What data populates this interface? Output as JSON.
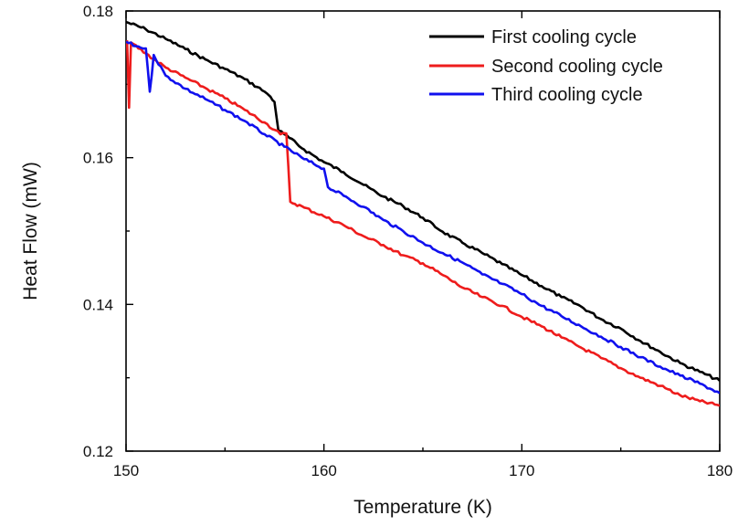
{
  "chart_data": {
    "type": "line",
    "title": "",
    "xlabel": "Temperature (K)",
    "ylabel": "Heat Flow (mW)",
    "xlim": [
      150,
      180
    ],
    "ylim": [
      0.12,
      0.18
    ],
    "x_ticks": [
      150,
      160,
      170,
      180
    ],
    "x_tick_labels": [
      "150",
      "160",
      "170",
      "180"
    ],
    "y_ticks": [
      0.12,
      0.14,
      0.16,
      0.18
    ],
    "y_tick_labels": [
      "0.12",
      "0.14",
      "0.16",
      "0.18"
    ],
    "grid": false,
    "legend_position": "top-right",
    "series": [
      {
        "name": "First cooling cycle",
        "color": "#000000",
        "points": [
          [
            150.0,
            0.1785
          ],
          [
            151.0,
            0.1775
          ],
          [
            152.0,
            0.1762
          ],
          [
            153.0,
            0.1748
          ],
          [
            154.0,
            0.1734
          ],
          [
            155.0,
            0.1721
          ],
          [
            156.0,
            0.1707
          ],
          [
            157.0,
            0.169
          ],
          [
            157.3,
            0.1683
          ],
          [
            157.5,
            0.1676
          ],
          [
            157.7,
            0.1637
          ],
          [
            158.0,
            0.1632
          ],
          [
            159.0,
            0.1611
          ],
          [
            160.0,
            0.1594
          ],
          [
            161.0,
            0.158
          ],
          [
            162.0,
            0.1563
          ],
          [
            163.0,
            0.1547
          ],
          [
            164.0,
            0.1534
          ],
          [
            165.0,
            0.1518
          ],
          [
            166.0,
            0.1499
          ],
          [
            167.0,
            0.1484
          ],
          [
            168.0,
            0.147
          ],
          [
            169.0,
            0.1455
          ],
          [
            170.0,
            0.144
          ],
          [
            171.0,
            0.1425
          ],
          [
            172.0,
            0.141
          ],
          [
            173.0,
            0.1397
          ],
          [
            174.0,
            0.138
          ],
          [
            175.0,
            0.1367
          ],
          [
            176.0,
            0.135
          ],
          [
            177.0,
            0.1335
          ],
          [
            178.0,
            0.132
          ],
          [
            179.0,
            0.1308
          ],
          [
            180.0,
            0.1296
          ]
        ]
      },
      {
        "name": "Second cooling cycle",
        "color": "#ee1c1c",
        "points": [
          [
            150.05,
            0.176
          ],
          [
            150.15,
            0.1668
          ],
          [
            150.25,
            0.1757
          ],
          [
            151.0,
            0.1742
          ],
          [
            152.0,
            0.1723
          ],
          [
            153.0,
            0.1709
          ],
          [
            154.0,
            0.1695
          ],
          [
            155.0,
            0.1681
          ],
          [
            156.0,
            0.1665
          ],
          [
            157.0,
            0.1648
          ],
          [
            157.8,
            0.1632
          ],
          [
            158.1,
            0.1633
          ],
          [
            158.3,
            0.154
          ],
          [
            159.0,
            0.1532
          ],
          [
            160.0,
            0.152
          ],
          [
            161.0,
            0.1508
          ],
          [
            162.0,
            0.1493
          ],
          [
            163.0,
            0.1481
          ],
          [
            164.0,
            0.1467
          ],
          [
            165.0,
            0.1456
          ],
          [
            166.0,
            0.144
          ],
          [
            167.0,
            0.1423
          ],
          [
            168.0,
            0.141
          ],
          [
            169.0,
            0.1398
          ],
          [
            170.0,
            0.1383
          ],
          [
            171.0,
            0.137
          ],
          [
            172.0,
            0.1355
          ],
          [
            173.0,
            0.1341
          ],
          [
            174.0,
            0.1327
          ],
          [
            175.0,
            0.1313
          ],
          [
            176.0,
            0.13
          ],
          [
            177.0,
            0.1289
          ],
          [
            178.0,
            0.1276
          ],
          [
            179.0,
            0.1268
          ],
          [
            180.0,
            0.1262
          ]
        ]
      },
      {
        "name": "Third cooling cycle",
        "color": "#1010ee",
        "points": [
          [
            150.0,
            0.1758
          ],
          [
            150.5,
            0.1752
          ],
          [
            151.0,
            0.1749
          ],
          [
            151.2,
            0.169
          ],
          [
            151.4,
            0.174
          ],
          [
            152.0,
            0.1712
          ],
          [
            153.0,
            0.1694
          ],
          [
            154.0,
            0.168
          ],
          [
            155.0,
            0.1665
          ],
          [
            156.0,
            0.165
          ],
          [
            157.0,
            0.1632
          ],
          [
            158.0,
            0.1615
          ],
          [
            159.0,
            0.1598
          ],
          [
            160.0,
            0.1585
          ],
          [
            160.2,
            0.156
          ],
          [
            161.0,
            0.1548
          ],
          [
            162.0,
            0.1533
          ],
          [
            163.0,
            0.1515
          ],
          [
            164.0,
            0.15
          ],
          [
            165.0,
            0.1484
          ],
          [
            166.0,
            0.147
          ],
          [
            167.0,
            0.1457
          ],
          [
            168.0,
            0.1441
          ],
          [
            169.0,
            0.1428
          ],
          [
            170.0,
            0.1414
          ],
          [
            171.0,
            0.1398
          ],
          [
            172.0,
            0.1384
          ],
          [
            173.0,
            0.137
          ],
          [
            174.0,
            0.1356
          ],
          [
            175.0,
            0.1342
          ],
          [
            176.0,
            0.1328
          ],
          [
            177.0,
            0.1315
          ],
          [
            178.0,
            0.1303
          ],
          [
            179.0,
            0.1292
          ],
          [
            180.0,
            0.1279
          ]
        ]
      }
    ]
  }
}
